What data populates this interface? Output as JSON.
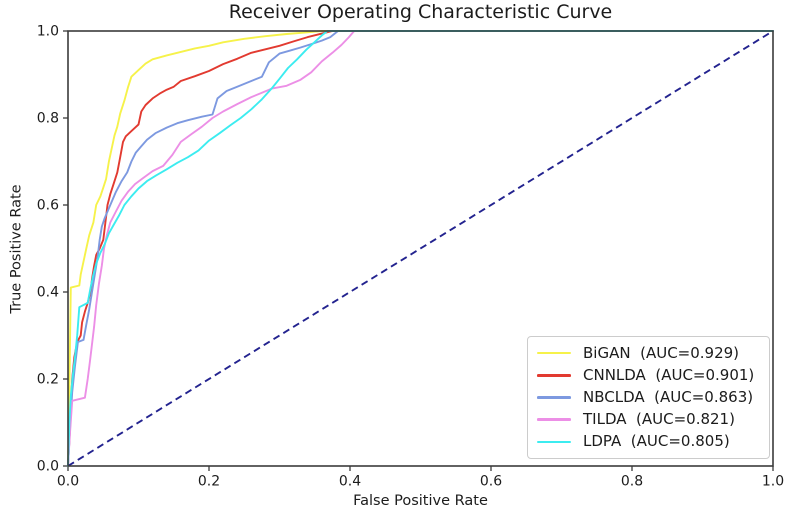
{
  "figure": {
    "background": "#ffffff",
    "frame_color": "#3b3b3b",
    "text_color": "#1c1c1c"
  },
  "chart_data": {
    "type": "line",
    "title": "Receiver Operating Characteristic Curve",
    "xlabel": "False Positive Rate",
    "ylabel": "True Positive Rate",
    "xlim": [
      0.0,
      1.0
    ],
    "ylim": [
      0.0,
      1.0
    ],
    "xticks": [
      0.0,
      0.2,
      0.4,
      0.6,
      0.8,
      1.0
    ],
    "yticks": [
      0.0,
      0.2,
      0.4,
      0.6,
      0.8,
      1.0
    ],
    "xtick_labels": [
      "0.0",
      "0.2",
      "0.4",
      "0.6",
      "0.8",
      "1.0"
    ],
    "ytick_labels": [
      "0.0",
      "0.2",
      "0.4",
      "0.6",
      "0.8",
      "1.0"
    ],
    "grid": false,
    "legend_position": "lower right",
    "series": [
      {
        "name": "BiGAN",
        "auc": 0.929,
        "label": "BiGAN  (AUC=0.929)",
        "color": "#f6f24a",
        "points": [
          [
            0,
            0
          ],
          [
            0.002,
            0.18
          ],
          [
            0.003,
            0.3
          ],
          [
            0.004,
            0.41
          ],
          [
            0.016,
            0.415
          ],
          [
            0.018,
            0.44
          ],
          [
            0.022,
            0.47
          ],
          [
            0.026,
            0.5
          ],
          [
            0.03,
            0.53
          ],
          [
            0.036,
            0.56
          ],
          [
            0.04,
            0.6
          ],
          [
            0.046,
            0.62
          ],
          [
            0.05,
            0.64
          ],
          [
            0.054,
            0.66
          ],
          [
            0.058,
            0.7
          ],
          [
            0.062,
            0.73
          ],
          [
            0.066,
            0.76
          ],
          [
            0.07,
            0.78
          ],
          [
            0.074,
            0.81
          ],
          [
            0.08,
            0.84
          ],
          [
            0.085,
            0.87
          ],
          [
            0.09,
            0.895
          ],
          [
            0.1,
            0.91
          ],
          [
            0.11,
            0.925
          ],
          [
            0.12,
            0.935
          ],
          [
            0.14,
            0.944
          ],
          [
            0.16,
            0.952
          ],
          [
            0.18,
            0.96
          ],
          [
            0.2,
            0.966
          ],
          [
            0.22,
            0.974
          ],
          [
            0.25,
            0.982
          ],
          [
            0.28,
            0.988
          ],
          [
            0.31,
            0.993
          ],
          [
            0.34,
            0.997
          ],
          [
            0.36,
            1.0
          ],
          [
            1.0,
            1.0
          ]
        ]
      },
      {
        "name": "CNNLDA",
        "auc": 0.901,
        "label": "CNNLDA  (AUC=0.901)",
        "color": "#e23a30",
        "points": [
          [
            0,
            0
          ],
          [
            0.002,
            0.06
          ],
          [
            0.004,
            0.13
          ],
          [
            0.006,
            0.2
          ],
          [
            0.009,
            0.25
          ],
          [
            0.013,
            0.285
          ],
          [
            0.018,
            0.3
          ],
          [
            0.02,
            0.33
          ],
          [
            0.024,
            0.355
          ],
          [
            0.028,
            0.375
          ],
          [
            0.032,
            0.4
          ],
          [
            0.034,
            0.43
          ],
          [
            0.037,
            0.46
          ],
          [
            0.04,
            0.485
          ],
          [
            0.045,
            0.5
          ],
          [
            0.05,
            0.52
          ],
          [
            0.053,
            0.56
          ],
          [
            0.056,
            0.6
          ],
          [
            0.06,
            0.625
          ],
          [
            0.065,
            0.65
          ],
          [
            0.07,
            0.675
          ],
          [
            0.074,
            0.71
          ],
          [
            0.078,
            0.745
          ],
          [
            0.082,
            0.758
          ],
          [
            0.09,
            0.77
          ],
          [
            0.1,
            0.785
          ],
          [
            0.104,
            0.815
          ],
          [
            0.11,
            0.83
          ],
          [
            0.12,
            0.845
          ],
          [
            0.13,
            0.856
          ],
          [
            0.14,
            0.865
          ],
          [
            0.15,
            0.872
          ],
          [
            0.16,
            0.885
          ],
          [
            0.18,
            0.896
          ],
          [
            0.2,
            0.908
          ],
          [
            0.22,
            0.924
          ],
          [
            0.24,
            0.936
          ],
          [
            0.26,
            0.95
          ],
          [
            0.28,
            0.958
          ],
          [
            0.3,
            0.966
          ],
          [
            0.32,
            0.976
          ],
          [
            0.34,
            0.986
          ],
          [
            0.36,
            0.994
          ],
          [
            0.375,
            1.0
          ],
          [
            1.0,
            1.0
          ]
        ]
      },
      {
        "name": "NBCLDA",
        "auc": 0.863,
        "label": "NBCLDA  (AUC=0.863)",
        "color": "#7d99e0",
        "points": [
          [
            0,
            0
          ],
          [
            0.003,
            0.09
          ],
          [
            0.006,
            0.17
          ],
          [
            0.01,
            0.23
          ],
          [
            0.014,
            0.285
          ],
          [
            0.022,
            0.29
          ],
          [
            0.026,
            0.325
          ],
          [
            0.03,
            0.36
          ],
          [
            0.034,
            0.4
          ],
          [
            0.038,
            0.44
          ],
          [
            0.042,
            0.48
          ],
          [
            0.045,
            0.52
          ],
          [
            0.048,
            0.55
          ],
          [
            0.052,
            0.57
          ],
          [
            0.06,
            0.6
          ],
          [
            0.068,
            0.63
          ],
          [
            0.076,
            0.655
          ],
          [
            0.084,
            0.675
          ],
          [
            0.09,
            0.7
          ],
          [
            0.096,
            0.72
          ],
          [
            0.104,
            0.735
          ],
          [
            0.112,
            0.75
          ],
          [
            0.124,
            0.765
          ],
          [
            0.14,
            0.778
          ],
          [
            0.155,
            0.788
          ],
          [
            0.17,
            0.795
          ],
          [
            0.19,
            0.803
          ],
          [
            0.205,
            0.808
          ],
          [
            0.212,
            0.845
          ],
          [
            0.225,
            0.862
          ],
          [
            0.24,
            0.872
          ],
          [
            0.26,
            0.885
          ],
          [
            0.275,
            0.895
          ],
          [
            0.285,
            0.928
          ],
          [
            0.3,
            0.948
          ],
          [
            0.315,
            0.955
          ],
          [
            0.33,
            0.962
          ],
          [
            0.345,
            0.97
          ],
          [
            0.36,
            0.978
          ],
          [
            0.372,
            0.986
          ],
          [
            0.383,
            1.0
          ],
          [
            1.0,
            1.0
          ]
        ]
      },
      {
        "name": "TILDA",
        "auc": 0.821,
        "label": "TILDA  (AUC=0.821)",
        "color": "#ec8fe6",
        "points": [
          [
            0,
            0
          ],
          [
            0.003,
            0.08
          ],
          [
            0.006,
            0.15
          ],
          [
            0.024,
            0.157
          ],
          [
            0.028,
            0.2
          ],
          [
            0.031,
            0.24
          ],
          [
            0.034,
            0.28
          ],
          [
            0.037,
            0.32
          ],
          [
            0.04,
            0.37
          ],
          [
            0.044,
            0.42
          ],
          [
            0.048,
            0.46
          ],
          [
            0.051,
            0.5
          ],
          [
            0.055,
            0.53
          ],
          [
            0.06,
            0.56
          ],
          [
            0.068,
            0.585
          ],
          [
            0.076,
            0.61
          ],
          [
            0.085,
            0.63
          ],
          [
            0.095,
            0.648
          ],
          [
            0.105,
            0.66
          ],
          [
            0.12,
            0.678
          ],
          [
            0.135,
            0.69
          ],
          [
            0.148,
            0.715
          ],
          [
            0.16,
            0.745
          ],
          [
            0.175,
            0.763
          ],
          [
            0.19,
            0.78
          ],
          [
            0.205,
            0.8
          ],
          [
            0.22,
            0.815
          ],
          [
            0.24,
            0.832
          ],
          [
            0.26,
            0.848
          ],
          [
            0.275,
            0.858
          ],
          [
            0.29,
            0.868
          ],
          [
            0.31,
            0.874
          ],
          [
            0.33,
            0.888
          ],
          [
            0.345,
            0.905
          ],
          [
            0.36,
            0.93
          ],
          [
            0.375,
            0.95
          ],
          [
            0.388,
            0.968
          ],
          [
            0.398,
            0.985
          ],
          [
            0.406,
            1.0
          ],
          [
            1.0,
            1.0
          ]
        ]
      },
      {
        "name": "LDPA",
        "auc": 0.805,
        "label": "LDPA  (AUC=0.805)",
        "color": "#3cecf0",
        "points": [
          [
            0,
            0
          ],
          [
            0.002,
            0.1
          ],
          [
            0.004,
            0.16
          ],
          [
            0.007,
            0.21
          ],
          [
            0.01,
            0.25
          ],
          [
            0.013,
            0.3
          ],
          [
            0.016,
            0.365
          ],
          [
            0.028,
            0.375
          ],
          [
            0.032,
            0.41
          ],
          [
            0.036,
            0.44
          ],
          [
            0.04,
            0.465
          ],
          [
            0.046,
            0.49
          ],
          [
            0.052,
            0.51
          ],
          [
            0.058,
            0.535
          ],
          [
            0.065,
            0.555
          ],
          [
            0.072,
            0.575
          ],
          [
            0.08,
            0.6
          ],
          [
            0.09,
            0.62
          ],
          [
            0.1,
            0.638
          ],
          [
            0.112,
            0.655
          ],
          [
            0.125,
            0.668
          ],
          [
            0.14,
            0.682
          ],
          [
            0.155,
            0.697
          ],
          [
            0.17,
            0.71
          ],
          [
            0.185,
            0.725
          ],
          [
            0.2,
            0.748
          ],
          [
            0.215,
            0.765
          ],
          [
            0.23,
            0.783
          ],
          [
            0.245,
            0.8
          ],
          [
            0.26,
            0.82
          ],
          [
            0.275,
            0.843
          ],
          [
            0.29,
            0.87
          ],
          [
            0.3,
            0.89
          ],
          [
            0.312,
            0.915
          ],
          [
            0.325,
            0.935
          ],
          [
            0.338,
            0.957
          ],
          [
            0.35,
            0.975
          ],
          [
            0.36,
            0.99
          ],
          [
            0.368,
            1.0
          ],
          [
            1.0,
            1.0
          ]
        ]
      }
    ],
    "reference_line": {
      "name": "chance-diagonal",
      "style": "dashed",
      "color": "#23238f",
      "points": [
        [
          0,
          0
        ],
        [
          1,
          1
        ]
      ]
    }
  }
}
